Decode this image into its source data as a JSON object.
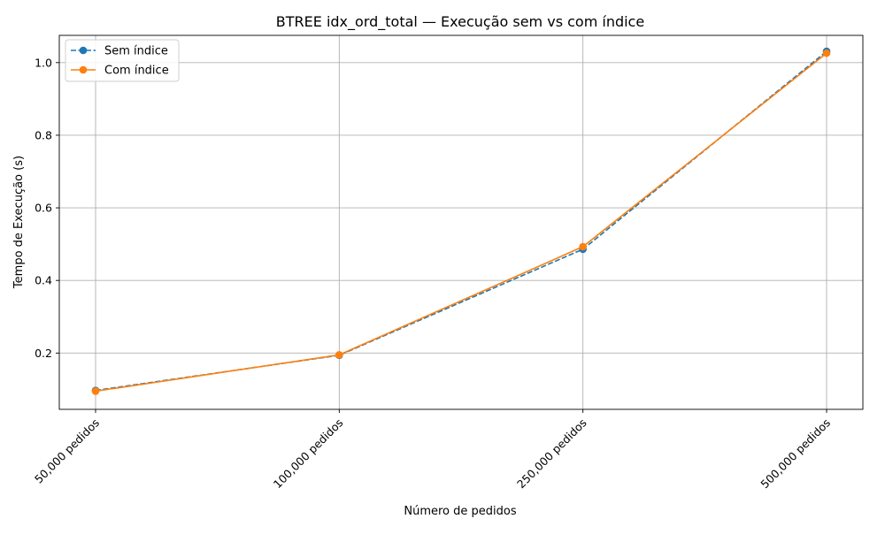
{
  "chart_data": {
    "type": "line",
    "title": "BTREE idx_ord_total — Execução sem vs com índice",
    "xlabel": "Número de pedidos",
    "ylabel": "Tempo de Execução (s)",
    "categories": [
      "50,000 pedidos",
      "100,000 pedidos",
      "250,000 pedidos",
      "500,000 pedidos"
    ],
    "ylim": [
      0.045,
      1.075
    ],
    "yticks": [
      0.2,
      0.4,
      0.6,
      0.8,
      1.0
    ],
    "ytick_labels": [
      "0.2",
      "0.4",
      "0.6",
      "0.8",
      "1.0"
    ],
    "grid": true,
    "legend_position": "top-left",
    "series": [
      {
        "name": "Sem índice",
        "values": [
          0.097,
          0.194,
          0.486,
          1.031
        ],
        "color": "#1f77b4",
        "line_style": "dashed",
        "marker": "circle"
      },
      {
        "name": "Com índice",
        "values": [
          0.095,
          0.195,
          0.493,
          1.026
        ],
        "color": "#ff7f0e",
        "line_style": "solid",
        "marker": "circle"
      }
    ]
  }
}
